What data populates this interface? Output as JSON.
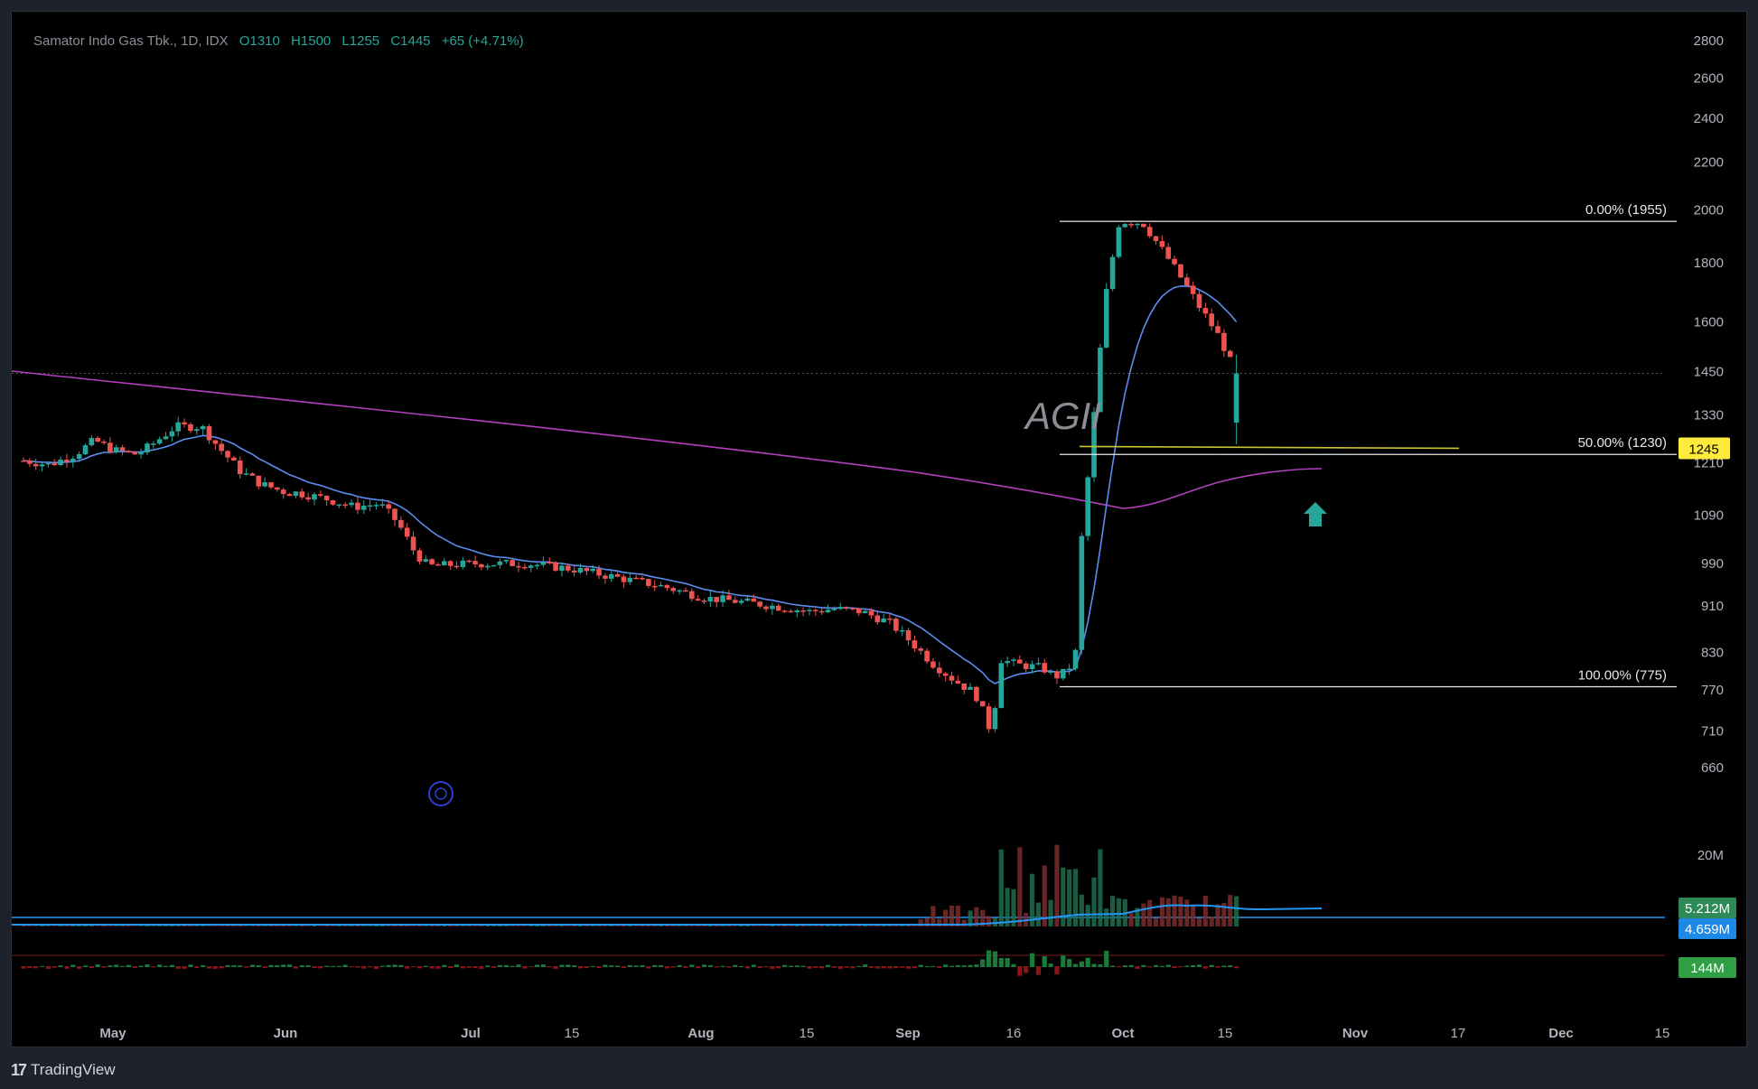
{
  "header": {
    "symbol": "Samator Indo Gas Tbk., 1D, IDX",
    "open": "O1310",
    "high": "H1500",
    "low": "L1255",
    "close": "C1445",
    "change": "+65 (+4.71%)"
  },
  "watermark": "AGII",
  "brand": {
    "logo": "17",
    "name": "TradingView"
  },
  "colors": {
    "up": "#26a69a",
    "down": "#ef5350",
    "ema_short": "#5b8def",
    "ema_long": "#b33fc0",
    "fib": "#e8e8e8",
    "support": "#c9c432",
    "price_tag": "#ffeb3b"
  },
  "price_axis": {
    "ticks": [
      2800,
      2600,
      2400,
      2200,
      2000,
      1800,
      1600,
      1450,
      1330,
      1210,
      1090,
      990,
      910,
      830,
      770,
      710,
      660
    ],
    "scale": "log"
  },
  "time_axis": {
    "labels": [
      "May",
      "Jun",
      "Jul",
      "15",
      "Aug",
      "15",
      "Sep",
      "16",
      "Oct",
      "15",
      "Nov",
      "17",
      "Dec",
      "15"
    ]
  },
  "fib_levels": [
    {
      "label": "0.00% (1955)",
      "price": 1955
    },
    {
      "label": "50.00% (1230)",
      "price": 1230
    },
    {
      "label": "100.00% (775)",
      "price": 775
    }
  ],
  "current_price": {
    "value": "1245",
    "price": 1245
  },
  "volume_axis": {
    "label": "20M"
  },
  "volume_tags": [
    {
      "value": "5.212M",
      "color": "#2e8b57",
      "text_color": "#ffffff"
    },
    {
      "value": "4.659M",
      "color": "#1e88e5",
      "text_color": "#ffffff"
    },
    {
      "value": "144M",
      "color": "#2ea043",
      "text_color": "#ffffff"
    }
  ],
  "chart_data": {
    "type": "candlestick",
    "ohlc_last": {
      "open": 1310,
      "high": 1500,
      "low": 1255,
      "close": 1445
    },
    "support_level": 1245,
    "trend": [
      {
        "period": "May",
        "price": 1210
      },
      {
        "period": "mid-May",
        "price": 1350
      },
      {
        "period": "Jun",
        "price": 1180
      },
      {
        "period": "Jul",
        "price": 970
      },
      {
        "period": "Aug",
        "price": 890
      },
      {
        "period": "Sep 16",
        "price": 690
      },
      {
        "period": "Oct",
        "price": 1230
      },
      {
        "period": "Oct peak",
        "price": 1955
      },
      {
        "period": "late Oct",
        "price": 1445
      }
    ],
    "series": [
      {
        "name": "EMA short",
        "type": "line"
      },
      {
        "name": "EMA long",
        "type": "line"
      }
    ]
  }
}
